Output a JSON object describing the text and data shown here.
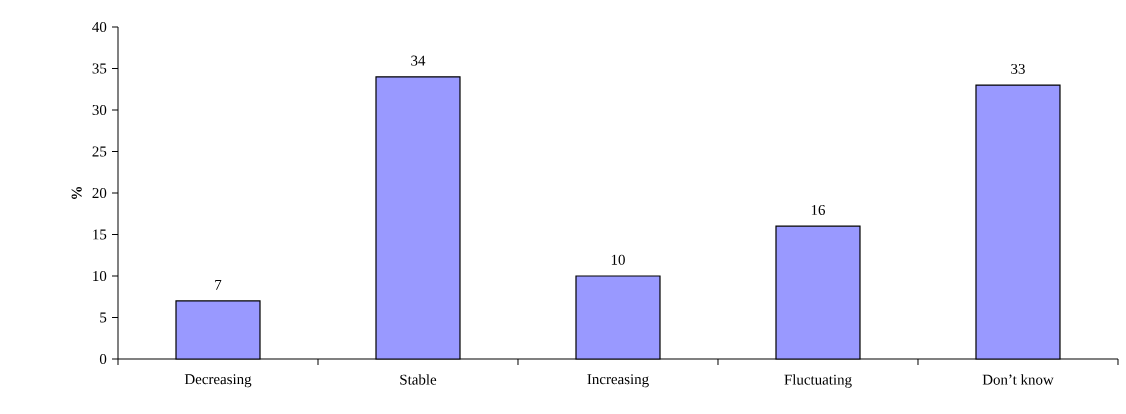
{
  "chart_data": {
    "type": "bar",
    "ylabel": "%",
    "categories": [
      "Decreasing",
      "Stable",
      "Increasing",
      "Fluctuating",
      "Don’t know"
    ],
    "values": [
      7,
      34,
      10,
      16,
      33
    ],
    "color": "#9999ff",
    "ylim": [
      0,
      40
    ],
    "yticks": [
      0,
      5,
      10,
      15,
      20,
      25,
      30,
      35,
      40
    ],
    "data_labels": true,
    "grid": false
  }
}
